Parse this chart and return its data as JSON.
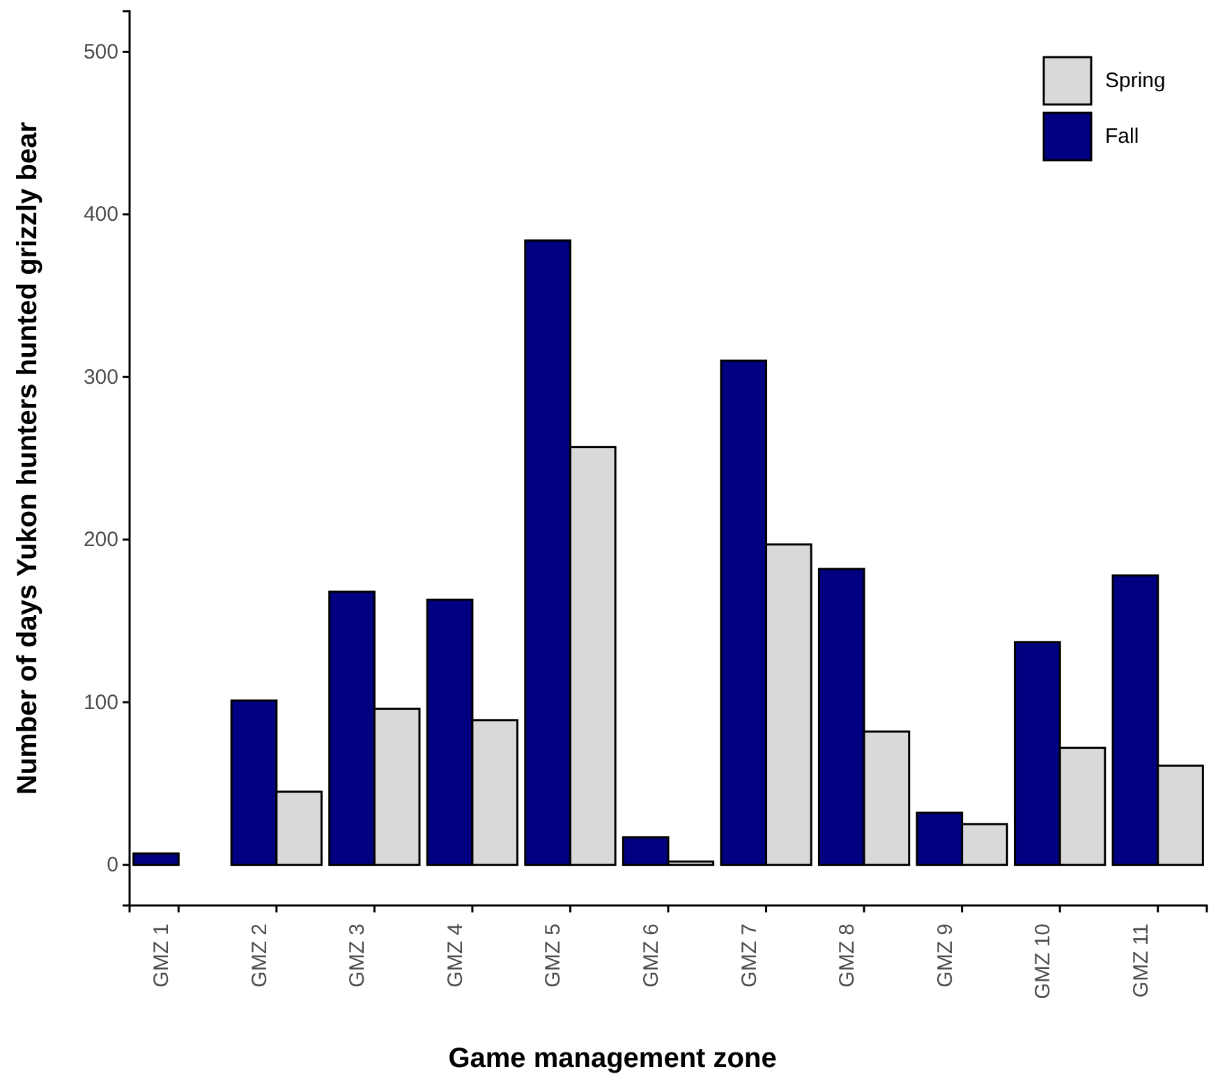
{
  "chart_data": {
    "type": "bar",
    "xlabel": "Game management zone",
    "ylabel": "Number of days Yukon hunters hunted grizzly bear",
    "categories": [
      "GMZ 1",
      "GMZ 2",
      "GMZ 3",
      "GMZ 4",
      "GMZ 5",
      "GMZ 6",
      "GMZ 7",
      "GMZ 8",
      "GMZ 9",
      "GMZ 10",
      "GMZ 11"
    ],
    "series": [
      {
        "name": "Fall",
        "color": "#000080",
        "values": [
          7,
          101,
          168,
          163,
          384,
          17,
          310,
          182,
          32,
          137,
          178
        ]
      },
      {
        "name": "Spring",
        "color": "#d9d9d9",
        "values": [
          0,
          45,
          96,
          89,
          257,
          2,
          197,
          82,
          25,
          72,
          61
        ]
      }
    ],
    "ylim": [
      -25,
      525
    ],
    "yticks": [
      0,
      100,
      200,
      300,
      400,
      500
    ],
    "grid": false,
    "legend": "top right"
  }
}
